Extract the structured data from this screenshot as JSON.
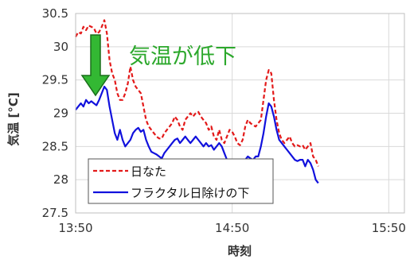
{
  "chart_data": {
    "type": "line",
    "xlabel": "時刻",
    "ylabel": "気温 [°C]",
    "ylim": [
      27.5,
      30.5
    ],
    "yticks": [
      27.5,
      28,
      28.5,
      29,
      29.5,
      30,
      30.5
    ],
    "xlim": [
      "13:50",
      "15:56"
    ],
    "xticks": [
      "13:50",
      "14:50",
      "15:50"
    ],
    "grid": {
      "horizontal": true,
      "vertical": true
    },
    "legend_position": "bottom-left",
    "annotation": {
      "text": "気温が低下",
      "arrow_color": "#33b833"
    },
    "series": [
      {
        "name": "日なた",
        "color": "#e31a1a",
        "style": "dashed",
        "points": [
          [
            "13:50",
            30.15
          ],
          [
            "13:51",
            30.22
          ],
          [
            "13:52",
            30.2
          ],
          [
            "13:53",
            30.3
          ],
          [
            "13:54",
            30.25
          ],
          [
            "13:55",
            30.32
          ],
          [
            "13:56",
            30.3
          ],
          [
            "13:57",
            30.28
          ],
          [
            "13:58",
            30.2
          ],
          [
            "13:59",
            30.22
          ],
          [
            "14:00",
            30.3
          ],
          [
            "14:01",
            30.4
          ],
          [
            "14:02",
            30.2
          ],
          [
            "14:03",
            29.8
          ],
          [
            "14:04",
            29.6
          ],
          [
            "14:05",
            29.5
          ],
          [
            "14:06",
            29.3
          ],
          [
            "14:07",
            29.2
          ],
          [
            "14:08",
            29.2
          ],
          [
            "14:09",
            29.3
          ],
          [
            "14:10",
            29.45
          ],
          [
            "14:11",
            29.7
          ],
          [
            "14:12",
            29.5
          ],
          [
            "14:13",
            29.4
          ],
          [
            "14:14",
            29.35
          ],
          [
            "14:15",
            29.3
          ],
          [
            "14:16",
            29.1
          ],
          [
            "14:17",
            28.9
          ],
          [
            "14:18",
            28.8
          ],
          [
            "14:19",
            28.75
          ],
          [
            "14:20",
            28.7
          ],
          [
            "14:21",
            28.65
          ],
          [
            "14:22",
            28.62
          ],
          [
            "14:23",
            28.62
          ],
          [
            "14:24",
            28.7
          ],
          [
            "14:25",
            28.75
          ],
          [
            "14:26",
            28.8
          ],
          [
            "14:27",
            28.85
          ],
          [
            "14:28",
            28.95
          ],
          [
            "14:29",
            28.9
          ],
          [
            "14:30",
            28.8
          ],
          [
            "14:31",
            28.75
          ],
          [
            "14:32",
            28.9
          ],
          [
            "14:33",
            28.95
          ],
          [
            "14:34",
            29.0
          ],
          [
            "14:35",
            28.95
          ],
          [
            "14:36",
            29.0
          ],
          [
            "14:37",
            29.02
          ],
          [
            "14:38",
            28.95
          ],
          [
            "14:39",
            28.9
          ],
          [
            "14:40",
            28.85
          ],
          [
            "14:41",
            28.75
          ],
          [
            "14:42",
            28.8
          ],
          [
            "14:43",
            28.65
          ],
          [
            "14:44",
            28.6
          ],
          [
            "14:45",
            28.75
          ],
          [
            "14:46",
            28.6
          ],
          [
            "14:47",
            28.55
          ],
          [
            "14:48",
            28.65
          ],
          [
            "14:49",
            28.75
          ],
          [
            "14:50",
            28.72
          ],
          [
            "14:51",
            28.65
          ],
          [
            "14:52",
            28.55
          ],
          [
            "14:53",
            28.52
          ],
          [
            "14:54",
            28.6
          ],
          [
            "14:55",
            28.8
          ],
          [
            "14:56",
            28.9
          ],
          [
            "14:57",
            28.85
          ],
          [
            "14:58",
            28.82
          ],
          [
            "14:59",
            28.8
          ],
          [
            "15:00",
            28.85
          ],
          [
            "15:01",
            28.9
          ],
          [
            "15:02",
            29.2
          ],
          [
            "15:03",
            29.5
          ],
          [
            "15:04",
            29.65
          ],
          [
            "15:05",
            29.6
          ],
          [
            "15:06",
            29.2
          ],
          [
            "15:07",
            28.9
          ],
          [
            "15:08",
            28.7
          ],
          [
            "15:09",
            28.6
          ],
          [
            "15:10",
            28.55
          ],
          [
            "15:11",
            28.6
          ],
          [
            "15:12",
            28.65
          ],
          [
            "15:13",
            28.55
          ],
          [
            "15:14",
            28.5
          ],
          [
            "15:15",
            28.52
          ],
          [
            "15:16",
            28.5
          ],
          [
            "15:17",
            28.52
          ],
          [
            "15:18",
            28.45
          ],
          [
            "15:19",
            28.5
          ],
          [
            "15:20",
            28.55
          ],
          [
            "15:21",
            28.35
          ],
          [
            "15:22",
            28.3
          ],
          [
            "15:23",
            28.2
          ]
        ]
      },
      {
        "name": "フラクタル日除けの下",
        "color": "#1111dd",
        "style": "solid",
        "points": [
          [
            "13:50",
            29.05
          ],
          [
            "13:51",
            29.1
          ],
          [
            "13:52",
            29.15
          ],
          [
            "13:53",
            29.1
          ],
          [
            "13:54",
            29.2
          ],
          [
            "13:55",
            29.15
          ],
          [
            "13:56",
            29.18
          ],
          [
            "13:57",
            29.15
          ],
          [
            "13:58",
            29.12
          ],
          [
            "13:59",
            29.2
          ],
          [
            "14:00",
            29.3
          ],
          [
            "14:01",
            29.4
          ],
          [
            "14:02",
            29.35
          ],
          [
            "14:03",
            29.1
          ],
          [
            "14:04",
            28.9
          ],
          [
            "14:05",
            28.7
          ],
          [
            "14:06",
            28.6
          ],
          [
            "14:07",
            28.75
          ],
          [
            "14:08",
            28.6
          ],
          [
            "14:09",
            28.5
          ],
          [
            "14:10",
            28.55
          ],
          [
            "14:11",
            28.6
          ],
          [
            "14:12",
            28.7
          ],
          [
            "14:13",
            28.75
          ],
          [
            "14:14",
            28.78
          ],
          [
            "14:15",
            28.72
          ],
          [
            "14:16",
            28.75
          ],
          [
            "14:17",
            28.6
          ],
          [
            "14:18",
            28.5
          ],
          [
            "14:19",
            28.42
          ],
          [
            "14:20",
            28.4
          ],
          [
            "14:21",
            28.38
          ],
          [
            "14:22",
            28.35
          ],
          [
            "14:23",
            28.32
          ],
          [
            "14:24",
            28.4
          ],
          [
            "14:25",
            28.45
          ],
          [
            "14:26",
            28.5
          ],
          [
            "14:27",
            28.55
          ],
          [
            "14:28",
            28.6
          ],
          [
            "14:29",
            28.62
          ],
          [
            "14:30",
            28.55
          ],
          [
            "14:31",
            28.6
          ],
          [
            "14:32",
            28.65
          ],
          [
            "14:33",
            28.6
          ],
          [
            "14:34",
            28.55
          ],
          [
            "14:35",
            28.6
          ],
          [
            "14:36",
            28.65
          ],
          [
            "14:37",
            28.6
          ],
          [
            "14:38",
            28.55
          ],
          [
            "14:39",
            28.5
          ],
          [
            "14:40",
            28.55
          ],
          [
            "14:41",
            28.5
          ],
          [
            "14:42",
            28.52
          ],
          [
            "14:43",
            28.45
          ],
          [
            "14:44",
            28.5
          ],
          [
            "14:45",
            28.55
          ],
          [
            "14:46",
            28.5
          ],
          [
            "14:47",
            28.4
          ],
          [
            "14:48",
            28.3
          ],
          [
            "14:49",
            28.2
          ],
          [
            "14:50",
            28.25
          ],
          [
            "14:51",
            28.2
          ],
          [
            "14:52",
            28.1
          ],
          [
            "14:53",
            28.05
          ],
          [
            "14:54",
            28.2
          ],
          [
            "14:55",
            28.3
          ],
          [
            "14:56",
            28.35
          ],
          [
            "14:57",
            28.32
          ],
          [
            "14:58",
            28.3
          ],
          [
            "14:59",
            28.35
          ],
          [
            "15:00",
            28.35
          ],
          [
            "15:01",
            28.5
          ],
          [
            "15:02",
            28.7
          ],
          [
            "15:03",
            28.95
          ],
          [
            "15:04",
            29.15
          ],
          [
            "15:05",
            29.1
          ],
          [
            "15:06",
            28.95
          ],
          [
            "15:07",
            28.75
          ],
          [
            "15:08",
            28.6
          ],
          [
            "15:09",
            28.55
          ],
          [
            "15:10",
            28.5
          ],
          [
            "15:11",
            28.45
          ],
          [
            "15:12",
            28.4
          ],
          [
            "15:13",
            28.35
          ],
          [
            "15:14",
            28.3
          ],
          [
            "15:15",
            28.28
          ],
          [
            "15:16",
            28.3
          ],
          [
            "15:17",
            28.3
          ],
          [
            "15:18",
            28.2
          ],
          [
            "15:19",
            28.3
          ],
          [
            "15:20",
            28.25
          ],
          [
            "15:21",
            28.15
          ],
          [
            "15:22",
            28.0
          ],
          [
            "15:23",
            27.95
          ]
        ]
      }
    ]
  }
}
